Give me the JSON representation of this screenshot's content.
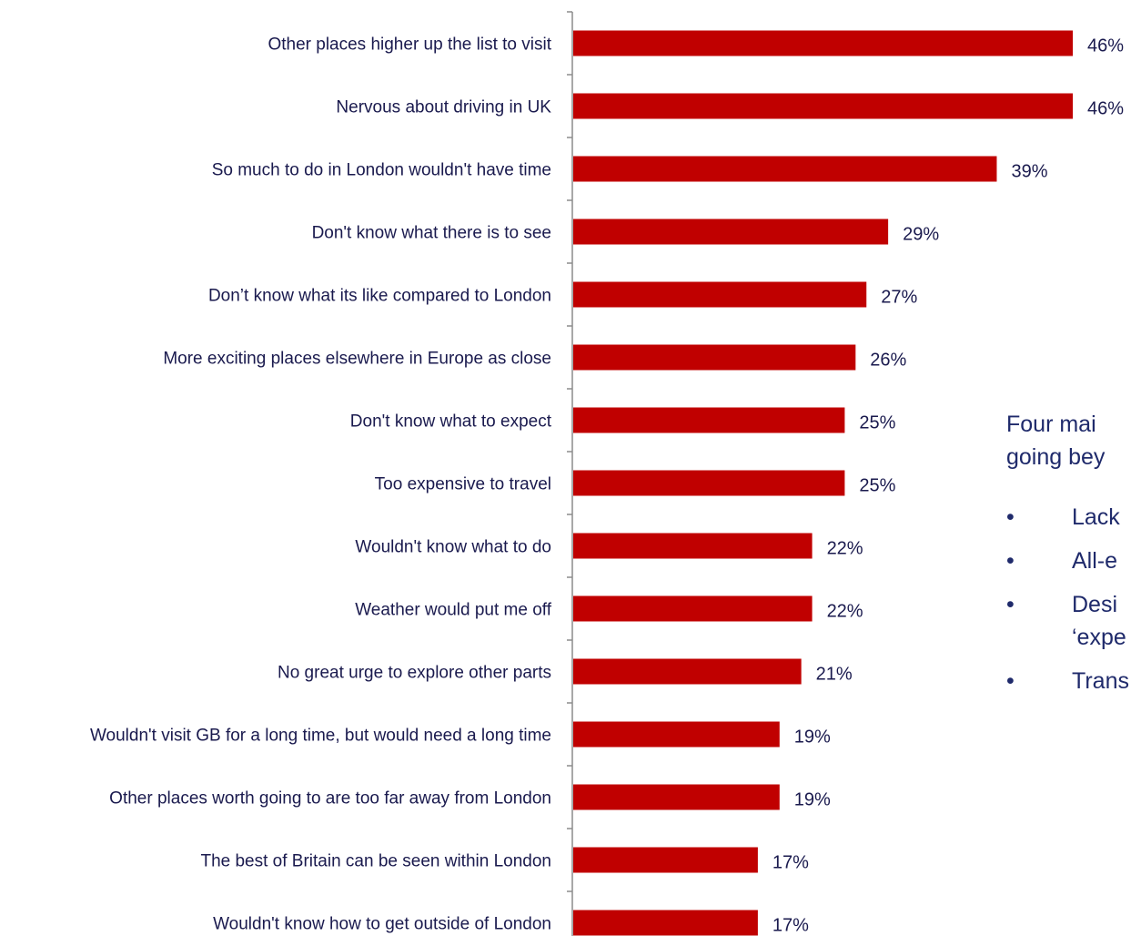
{
  "chart_data": {
    "type": "bar",
    "orientation": "horizontal",
    "categories": [
      "Other places higher up the list to visit",
      "Nervous about driving in UK",
      "So much to do in London wouldn't have time",
      "Don't know what there is to see",
      "Don’t know what its like compared to London",
      "More exciting places elsewhere in Europe as close",
      "Don't know what to expect",
      "Too expensive to travel",
      "Wouldn't know what to do",
      "Weather would put me off",
      "No great urge to explore other parts",
      "Wouldn't visit GB for a long time, but would need a long time",
      "Other places worth going to are too far away from London",
      "The best of Britain can be seen within London",
      "Wouldn't know how to get outside of London"
    ],
    "values": [
      46,
      46,
      39,
      29,
      27,
      26,
      25,
      25,
      22,
      22,
      21,
      19,
      19,
      17,
      17
    ],
    "value_labels": [
      "46%",
      "46%",
      "39%",
      "29%",
      "27%",
      "26%",
      "25%",
      "25%",
      "22%",
      "22%",
      "21%",
      "19%",
      "19%",
      "17%",
      "17%"
    ],
    "xlim": [
      0,
      46
    ],
    "bar_color": "#c00000",
    "grid": false,
    "legend": "none"
  },
  "side_text": {
    "intro_lines": [
      "Four  mai",
      "going bey"
    ],
    "bullet_char": "•",
    "bullets": [
      {
        "lines": [
          "Lack"
        ]
      },
      {
        "lines": [
          "All-e"
        ]
      },
      {
        "lines": [
          "Desi",
          "‘expe"
        ]
      },
      {
        "lines": [
          "Trans"
        ]
      }
    ]
  }
}
